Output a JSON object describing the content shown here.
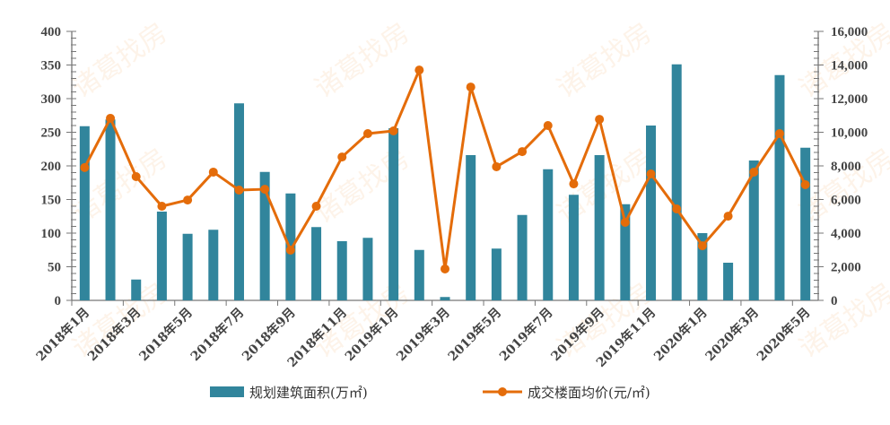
{
  "chart_data": {
    "type": "bar+line",
    "categories": [
      "2018年1月",
      "2018年2月",
      "2018年3月",
      "2018年4月",
      "2018年5月",
      "2018年6月",
      "2018年7月",
      "2018年8月",
      "2018年9月",
      "2018年10月",
      "2018年11月",
      "2018年12月",
      "2019年1月",
      "2019年2月",
      "2019年3月",
      "2019年4月",
      "2019年5月",
      "2019年6月",
      "2019年7月",
      "2019年8月",
      "2019年9月",
      "2019年10月",
      "2019年11月",
      "2019年12月",
      "2020年1月",
      "2020年2月",
      "2020年3月",
      "2020年4月",
      "2020年5月"
    ],
    "x_tick_labels": [
      "2018年1月",
      "2018年3月",
      "2018年5月",
      "2018年7月",
      "2018年9月",
      "2018年11月",
      "2019年1月",
      "2019年3月",
      "2019年5月",
      "2019年7月",
      "2019年9月",
      "2019年11月",
      "2020年1月",
      "2020年3月",
      "2020年5月"
    ],
    "series": [
      {
        "name": "规划建筑面积(万㎡)",
        "type": "bar",
        "axis": "left",
        "color": "#31859c",
        "values": [
          259,
          269,
          31,
          132,
          99,
          105,
          293,
          191,
          159,
          109,
          88,
          93,
          256,
          75,
          5,
          216,
          77,
          127,
          195,
          157,
          216,
          143,
          260,
          351,
          100,
          56,
          208,
          335,
          227
        ]
      },
      {
        "name": "成交楼面均价(元/㎡)",
        "type": "line",
        "axis": "right",
        "color": "#e46c0a",
        "values": [
          7900,
          10830,
          7360,
          5600,
          5970,
          7630,
          6560,
          6610,
          2990,
          5600,
          8530,
          9920,
          10080,
          13700,
          1870,
          12690,
          7950,
          8850,
          10400,
          6930,
          10770,
          4640,
          7520,
          5440,
          3250,
          5010,
          7630,
          9920,
          6880
        ]
      }
    ],
    "y_left": {
      "range": [
        0,
        400
      ],
      "ticks": [
        "0",
        "50",
        "100",
        "150",
        "200",
        "250",
        "300",
        "350",
        "400"
      ]
    },
    "y_right": {
      "range": [
        0,
        16000
      ],
      "ticks": [
        "0",
        "2,000",
        "4,000",
        "6,000",
        "8,000",
        "10,000",
        "12,000",
        "14,000",
        "16,000"
      ]
    },
    "grid": false,
    "legend_placement": "bottom"
  },
  "watermark": "诸葛找房"
}
